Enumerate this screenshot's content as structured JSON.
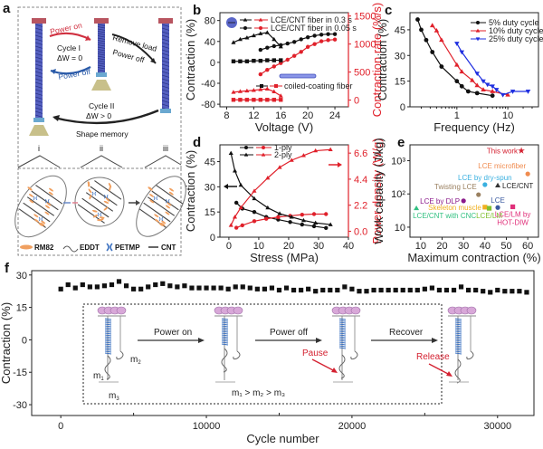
{
  "colors": {
    "black": "#111111",
    "red": "#e0202a",
    "blue": "#1f2fe0",
    "axis_red": "#e0202a",
    "dashed_border": "#777777",
    "coil_blue": "#4a55b0",
    "cap_red": "#b85560",
    "base_tan": "#c8c08a",
    "rm82_orange": "#f0a060",
    "petmp_blue": "#3a70c0"
  },
  "panel_a": {
    "label": "a",
    "power_on": "Power on",
    "power_off": "Power off",
    "cycle1": "Cycle I",
    "cycle1_dw": "ΔW = 0",
    "remove_load": "Remove load",
    "power_off2": "Power off",
    "cycle2": "Cycle II",
    "cycle2_dw": "ΔW > 0",
    "shape_memory": "Shape memory",
    "states": [
      "i",
      "ii",
      "iii"
    ],
    "legend": [
      {
        "icon": "rm82-icon",
        "label": "RM82"
      },
      {
        "icon": "eddt-icon",
        "label": "EDDT"
      },
      {
        "icon": "petmp-icon",
        "label": "PETMP"
      },
      {
        "icon": "cnt-icon",
        "label": "CNT"
      }
    ]
  },
  "chart_data": [
    {
      "id": "b",
      "type": "line",
      "panel_label": "b",
      "xlabel": "Voltage (V)",
      "ylabel": "Contraction (%)",
      "ylabel_right": "Contraction rate (%/s)",
      "xlim": [
        7,
        26
      ],
      "ylim": [
        -85,
        95
      ],
      "ylim_right": [
        -120,
        1560
      ],
      "xticks": [
        8,
        12,
        16,
        20,
        24
      ],
      "yticks": [
        -80,
        -40,
        0,
        40,
        80
      ],
      "yticks_right": [
        0,
        500,
        1000,
        1500
      ],
      "legend": [
        {
          "label": "LCE/CNT fiber in 0.3 s",
          "marker": "triangle"
        },
        {
          "label": "LCE/CNT fiber in 0.05 s",
          "marker": "circle"
        },
        {
          "label": "coiled-coating fiber",
          "marker": "square"
        }
      ],
      "series": [
        {
          "name": "LCE/CNT fiber in 0.3 s (contraction)",
          "axis": "left",
          "color": "black",
          "marker": "triangle",
          "x": [
            9,
            10,
            11,
            12,
            13,
            14,
            15,
            16
          ],
          "y": [
            38,
            44,
            47,
            51,
            55,
            57,
            44,
            30
          ]
        },
        {
          "name": "LCE/CNT fiber in 0.3 s (rate)",
          "axis": "right",
          "color": "red",
          "marker": "triangle",
          "x": [
            9,
            10,
            11,
            12,
            13,
            14,
            15,
            16
          ],
          "y": [
            140,
            155,
            165,
            175,
            190,
            200,
            150,
            75
          ]
        },
        {
          "name": "LCE/CNT fiber in 0.05 s (contraction)",
          "axis": "left",
          "color": "black",
          "marker": "circle",
          "x": [
            13,
            14,
            15,
            16,
            17,
            18,
            19,
            20,
            21,
            22,
            23,
            24
          ],
          "y": [
            24,
            28,
            31,
            33,
            36,
            39,
            44,
            48,
            51,
            53,
            54,
            54
          ]
        },
        {
          "name": "LCE/CNT fiber in 0.05 s (rate)",
          "axis": "right",
          "color": "red",
          "marker": "circle",
          "x": [
            13,
            14,
            15,
            16,
            17,
            18,
            19,
            20,
            21,
            22,
            23,
            24
          ],
          "y": [
            460,
            540,
            600,
            660,
            720,
            790,
            860,
            950,
            1000,
            1050,
            1070,
            1080
          ]
        },
        {
          "name": "coiled-coating fiber (contraction)",
          "axis": "left",
          "color": "black",
          "marker": "square",
          "x": [
            9,
            10,
            11,
            12,
            13,
            14,
            15,
            16
          ],
          "y": [
            2,
            2,
            2,
            3,
            3,
            4,
            4,
            4
          ]
        },
        {
          "name": "coiled-coating fiber (rate)",
          "axis": "right",
          "color": "red",
          "marker": "square",
          "x": [
            9,
            10,
            11,
            12,
            13,
            14,
            15,
            16
          ],
          "y": [
            5,
            5,
            5,
            5,
            5,
            5,
            5,
            5
          ]
        }
      ]
    },
    {
      "id": "c",
      "type": "line",
      "panel_label": "c",
      "xlabel": "Frequency (Hz)",
      "ylabel": "Contraction (%)",
      "xscale": "log",
      "xlim": [
        0.12,
        40
      ],
      "ylim": [
        0,
        55
      ],
      "xticks": [
        1,
        10
      ],
      "yticks": [
        0,
        15,
        30,
        45
      ],
      "legend_position": "top-right",
      "series": [
        {
          "name": "5% duty cycle",
          "color": "black",
          "marker": "circle",
          "x": [
            0.17,
            0.2,
            0.25,
            0.33,
            0.5,
            1,
            1.25,
            1.67,
            2.5,
            5
          ],
          "y": [
            51,
            45,
            39,
            32,
            23.5,
            15,
            12,
            9,
            8,
            6.5
          ]
        },
        {
          "name": "10% duty cycle",
          "color": "red",
          "marker": "triangle",
          "x": [
            0.33,
            0.4,
            0.5,
            1,
            1.25,
            2,
            2.5,
            3.3,
            5,
            10
          ],
          "y": [
            47.5,
            44.5,
            39,
            24.5,
            20.5,
            15.5,
            12.5,
            10,
            9,
            7
          ]
        },
        {
          "name": "25% duty cycle",
          "color": "blue",
          "marker": "triangle-down",
          "x": [
            1,
            1.25,
            2.5,
            3.3,
            4,
            5,
            6,
            8,
            12.5,
            25
          ],
          "y": [
            37,
            32,
            19.5,
            15,
            13,
            12,
            10,
            7,
            9,
            9
          ]
        }
      ]
    },
    {
      "id": "d",
      "type": "line",
      "panel_label": "d",
      "xlabel": "Stress (MPa)",
      "ylabel": "Contraction (%)",
      "ylabel_right": "Power density (W/g)",
      "xlim": [
        -3,
        40
      ],
      "ylim": [
        0,
        55
      ],
      "ylim_right": [
        -0.5,
        7.3
      ],
      "xticks": [
        0,
        10,
        20,
        30,
        40
      ],
      "yticks": [
        0,
        15,
        30,
        45
      ],
      "yticks_right": [
        0.0,
        2.2,
        4.4,
        6.6
      ],
      "legend": [
        {
          "label": "1-ply",
          "marker": "circle"
        },
        {
          "label": "2-ply",
          "marker": "triangle"
        }
      ],
      "arrows": [
        {
          "direction": "left",
          "color": "black"
        },
        {
          "direction": "right",
          "color": "red"
        }
      ],
      "series": [
        {
          "name": "1-ply (contraction)",
          "axis": "left",
          "color": "black",
          "marker": "circle",
          "x": [
            2.5,
            4.5,
            8.5,
            12.5,
            16.5,
            20.5,
            24.5,
            28.5,
            32.5
          ],
          "y": [
            20.5,
            17,
            15,
            12,
            10.5,
            9,
            7.5,
            6.5,
            5.5
          ]
        },
        {
          "name": "1-ply (power)",
          "axis": "right",
          "color": "red",
          "marker": "circle",
          "x": [
            2.5,
            4.5,
            8.5,
            12.5,
            16.5,
            20.5,
            24.5,
            28.5,
            32.5
          ],
          "y": [
            0.3,
            0.5,
            0.85,
            1.05,
            1.2,
            1.3,
            1.4,
            1.45,
            1.45
          ]
        },
        {
          "name": "2-ply (contraction)",
          "axis": "left",
          "color": "black",
          "marker": "triangle",
          "x": [
            0.7,
            2,
            4,
            8.5,
            13,
            17,
            21,
            25,
            29,
            34
          ],
          "y": [
            50,
            39.5,
            31,
            23,
            17.5,
            14,
            12,
            10,
            8.5,
            7.5
          ]
        },
        {
          "name": "2-ply (power)",
          "axis": "right",
          "color": "red",
          "marker": "triangle",
          "x": [
            0.7,
            2,
            4,
            8.5,
            13,
            17,
            21,
            25,
            29,
            34
          ],
          "y": [
            0.5,
            1.2,
            2.0,
            3.4,
            4.5,
            5.4,
            6.0,
            6.4,
            6.8,
            6.9
          ]
        }
      ]
    },
    {
      "id": "e",
      "type": "scatter",
      "panel_label": "e",
      "xlabel": "Maximum contraction (%)",
      "ylabel": "Work capacity (J/kg)",
      "yscale": "log",
      "xlim": [
        5,
        65
      ],
      "ylim": [
        5,
        3000
      ],
      "xticks": [
        10,
        20,
        30,
        40,
        50,
        60
      ],
      "yticks": [
        10,
        100,
        1000
      ],
      "ytick_labels": [
        "10",
        "10²",
        "10³"
      ],
      "points": [
        {
          "label": "This work",
          "x": 57,
          "y": 2000,
          "color": "#d42030",
          "marker": "star",
          "label_pos": "left"
        },
        {
          "label": "LCE microfiber",
          "x": 60,
          "y": 400,
          "color": "#f08c50",
          "marker": "circle",
          "label_pos": "above-left"
        },
        {
          "label": "LCE by dry-spun",
          "x": 40,
          "y": 190,
          "color": "#3ab0e0",
          "marker": "circle",
          "label_pos": "above"
        },
        {
          "label": "LCE/CNT",
          "x": 46,
          "y": 180,
          "color": "#333333",
          "marker": "triangle",
          "label_pos": "right"
        },
        {
          "label": "Twisting LCE",
          "x": 37,
          "y": 95,
          "color": "#9a8060",
          "marker": "circle",
          "label_pos": "above-left"
        },
        {
          "label": "LCE by DLP",
          "x": 30,
          "y": 62,
          "color": "#8a1a8a",
          "marker": "circle",
          "label_pos": "left"
        },
        {
          "label": "Skeleton muscle",
          "x": 40,
          "y": 40,
          "color": "#f0b020",
          "marker": "square",
          "label_pos": "left"
        },
        {
          "label": "LCE/LM",
          "x": 42,
          "y": 37,
          "color": "#80c030",
          "marker": "square",
          "label_pos": "below"
        },
        {
          "label": "LCE",
          "x": 46,
          "y": 39,
          "color": "#3a5aa0",
          "marker": "circle",
          "label_pos": "above"
        },
        {
          "label": "LCE/LM by HOT-DIW",
          "x": 53,
          "y": 41,
          "color": "#e0307a",
          "marker": "square",
          "label_pos": "below"
        },
        {
          "label": "LCE/CNT with CNC",
          "x": 8,
          "y": 37,
          "color": "#30c080",
          "marker": "triangle",
          "label_pos": "below-right"
        }
      ]
    },
    {
      "id": "f",
      "type": "scatter",
      "panel_label": "f",
      "xlabel": "Cycle number",
      "ylabel": "Contraction (%)",
      "xlim": [
        -2000,
        32500
      ],
      "ylim": [
        -35,
        32
      ],
      "xticks": [
        0,
        10000,
        20000,
        30000
      ],
      "yticks": [
        -30,
        -15,
        0,
        15,
        30
      ],
      "series": [
        {
          "name": "cycling stability",
          "color": "black",
          "marker": "square",
          "x": [
            0,
            500,
            1000,
            1500,
            2000,
            2500,
            3000,
            3500,
            4000,
            4500,
            5000,
            5500,
            6000,
            6500,
            7000,
            7500,
            8000,
            8500,
            9000,
            9500,
            10000,
            10500,
            11000,
            11500,
            12000,
            12500,
            13000,
            13500,
            14000,
            14500,
            15000,
            15500,
            16000,
            16500,
            17000,
            17500,
            18000,
            18500,
            19000,
            19500,
            20000,
            20500,
            21000,
            21500,
            22000,
            22500,
            23000,
            23500,
            24000,
            24500,
            25000,
            25500,
            26000,
            26500,
            27000,
            27500,
            28000,
            28500,
            29000,
            29500,
            30000,
            30500,
            31000,
            31500,
            32000
          ],
          "y": [
            23.5,
            25.5,
            24,
            25.5,
            24.5,
            24.5,
            25,
            25.5,
            27,
            25,
            23.5,
            23.5,
            24.5,
            25.5,
            26,
            25,
            24.5,
            25,
            24,
            24,
            24,
            24,
            24,
            23.5,
            24.5,
            24.5,
            24,
            23.5,
            23.5,
            24,
            23,
            24,
            23,
            23,
            23.5,
            22.5,
            23,
            23,
            23,
            24.5,
            23.5,
            22.5,
            22.5,
            23,
            23,
            23,
            23,
            23,
            23,
            23,
            23.5,
            24,
            23,
            23,
            23,
            24.5,
            23,
            23,
            22.5,
            22,
            23,
            22.5,
            22.5,
            22.5,
            22
          ]
        }
      ]
    }
  ],
  "panel_f_inset": {
    "steps": [
      "Power on",
      "Power off",
      "Recover"
    ],
    "pause": "Pause",
    "release": "Release",
    "m1": "m",
    "m1_sub": "1",
    "m2": "m",
    "m2_sub": "2",
    "m3": "m",
    "m3_sub": "3",
    "relation": "m₁ > m₂ > m₃"
  },
  "panel_b_extra": {
    "coiled_coating_fiber_label": "coiled-coating fiber"
  }
}
